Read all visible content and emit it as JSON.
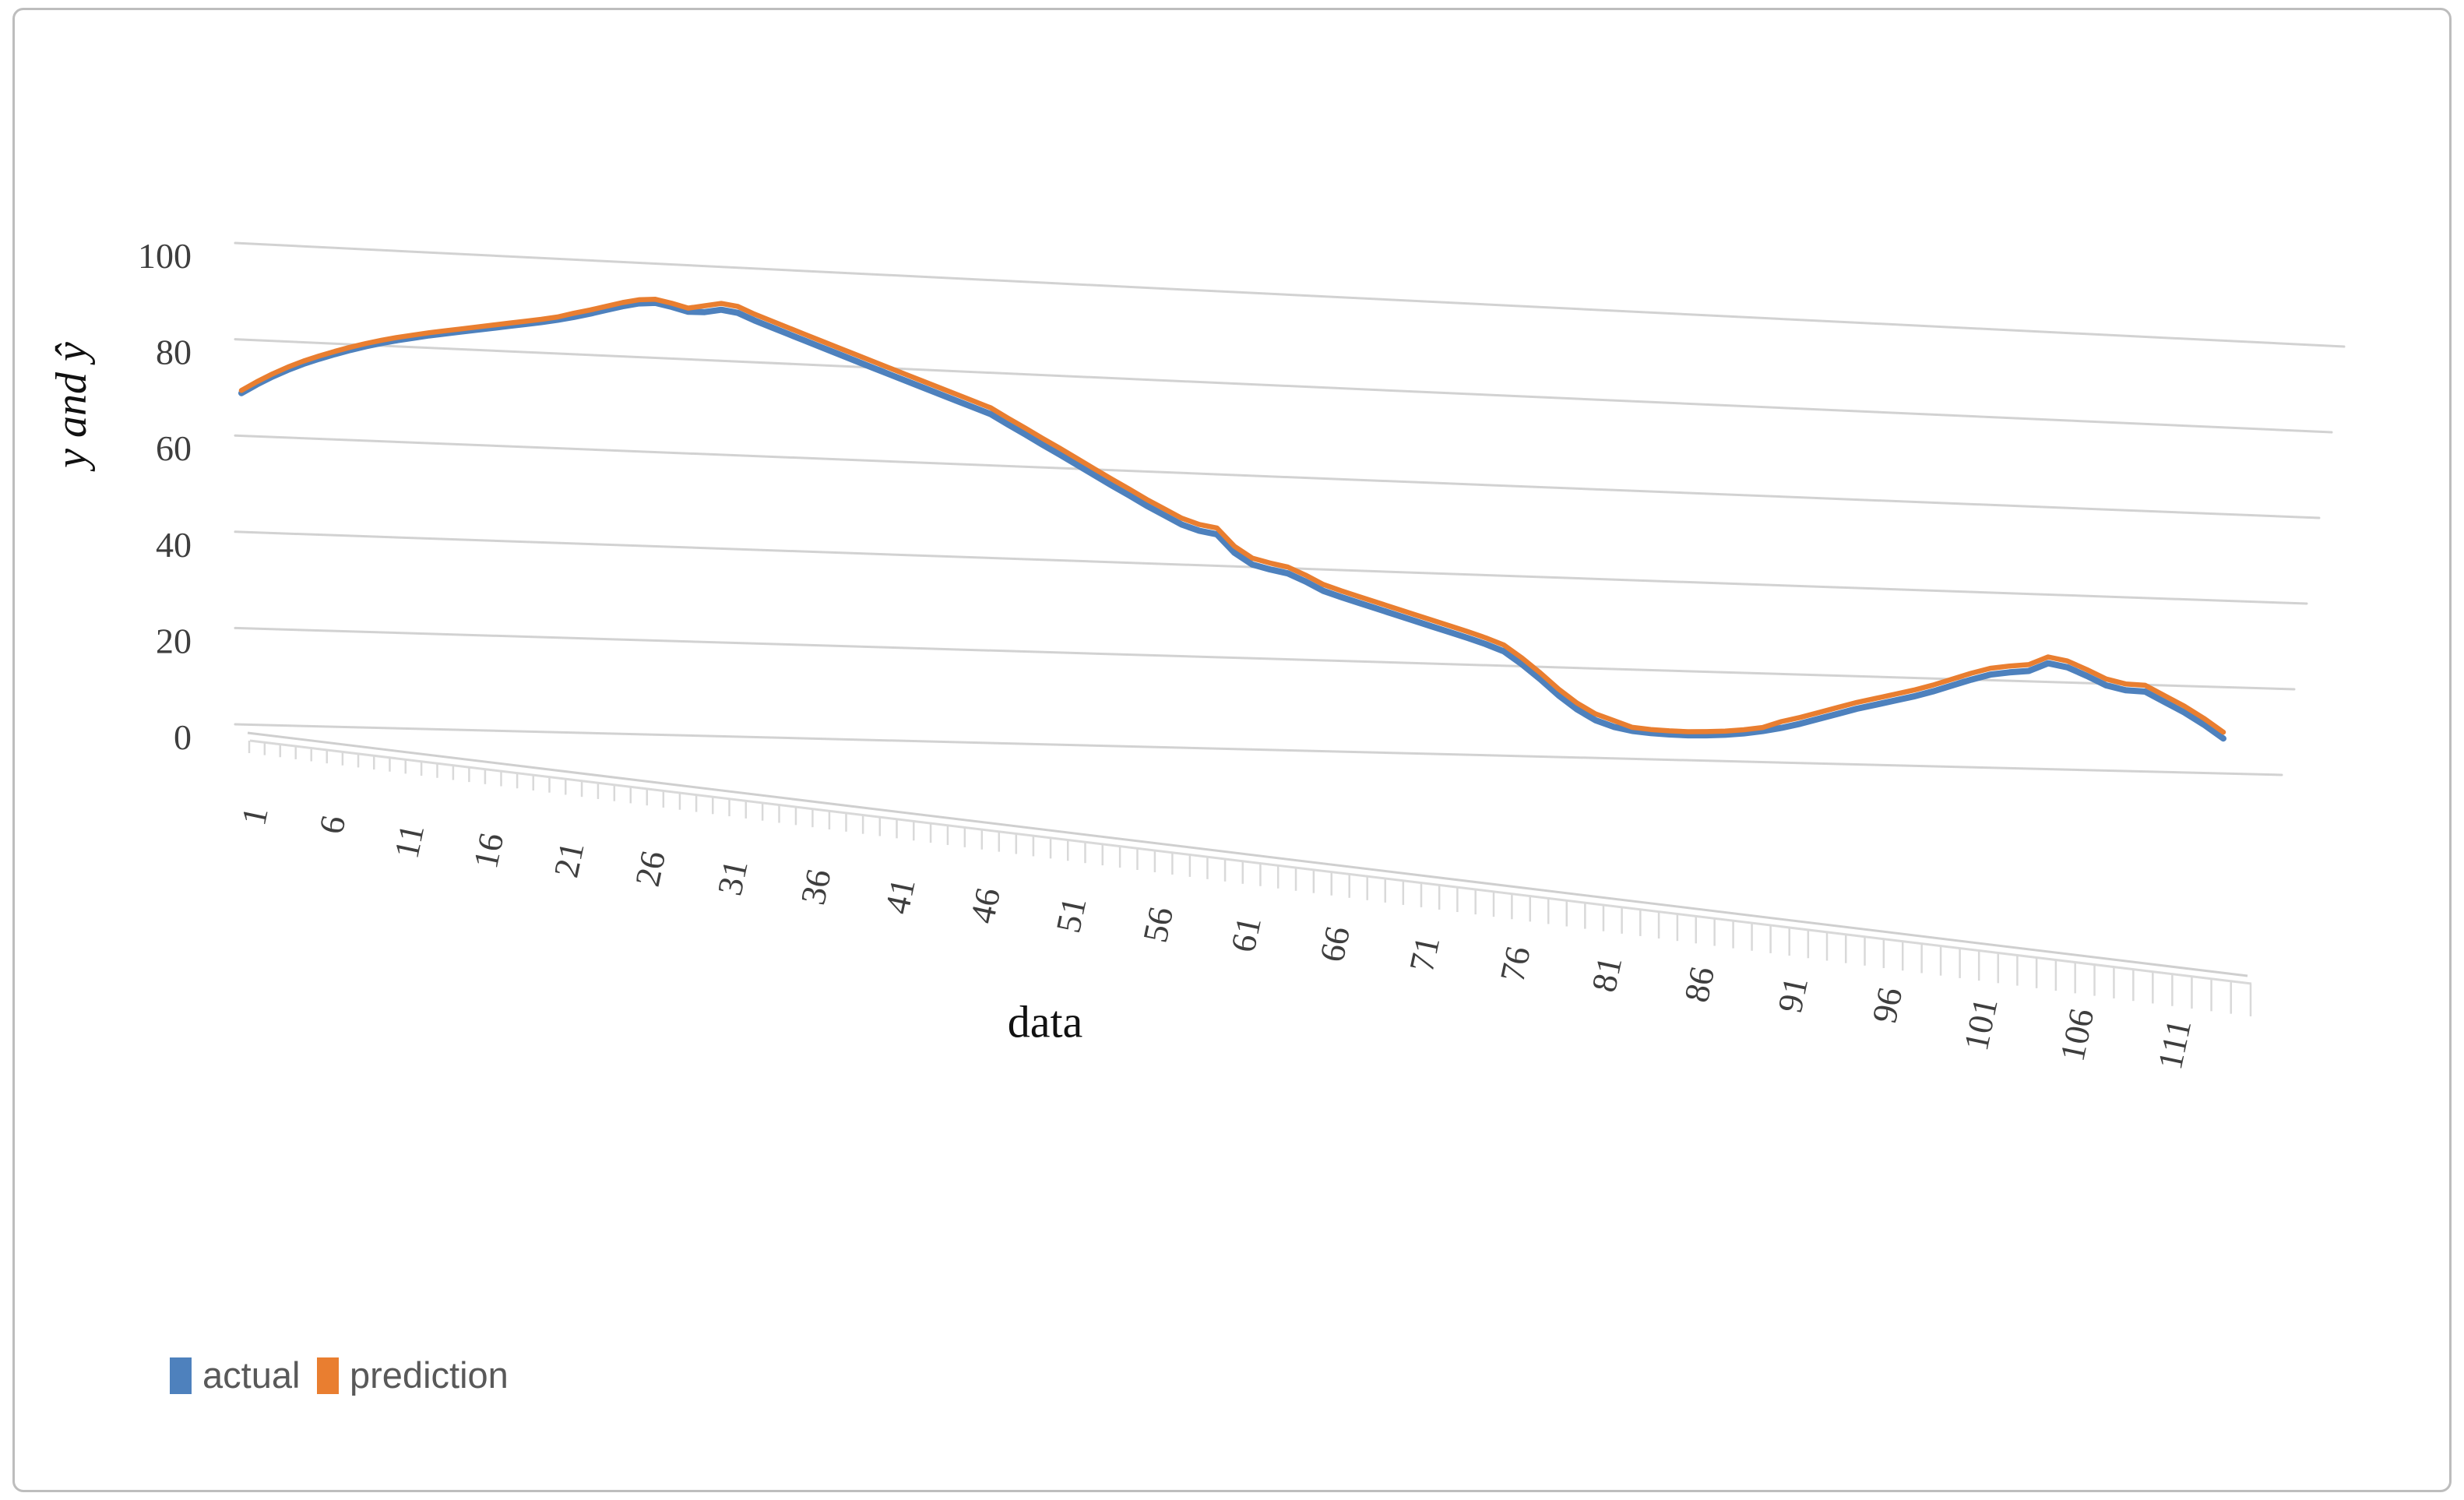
{
  "figure": {
    "background": "#ffffff",
    "border_color": "#bdbdbd"
  },
  "chart_data": {
    "type": "line",
    "title": "",
    "xlabel": "data",
    "ylabel": "y and ŷ",
    "x": {
      "from": 1,
      "to": 114,
      "step": 1
    },
    "xticks": [
      1,
      6,
      11,
      16,
      21,
      26,
      31,
      36,
      41,
      46,
      51,
      56,
      61,
      66,
      71,
      76,
      81,
      86,
      91,
      96,
      101,
      106,
      111
    ],
    "yticks": [
      0,
      20,
      40,
      60,
      80,
      100
    ],
    "ylim": [
      0,
      100
    ],
    "grid": "horizontal gridlines on slanted 3D back wall",
    "projection": "excel-3d-line-perspective",
    "legend_position": "bottom-left",
    "gridline_color": "#d2d2d2",
    "axis_ruler_color": "#d9d9d9",
    "tick_label_color": "#3e3e3e",
    "series": [
      {
        "name": "actual",
        "color": "#4E81BD",
        "values": [
          69,
          71,
          72.8,
          74.4,
          75.8,
          77,
          78.1,
          79.1,
          80,
          80.8,
          81.5,
          82.1,
          82.7,
          83.2,
          83.7,
          84.2,
          84.7,
          85.2,
          85.7,
          86.2,
          86.8,
          87.5,
          88.3,
          89.2,
          90.1,
          90.8,
          91,
          90.2,
          89.2,
          89.2,
          89.8,
          89.2,
          87.6,
          86.2,
          84.8,
          83.4,
          82,
          80.6,
          79.2,
          77.8,
          76.4,
          75,
          73.6,
          72.2,
          70.8,
          69.4,
          68,
          65.8,
          63.7,
          61.5,
          59.4,
          57.2,
          55,
          52.8,
          50.7,
          48.5,
          46.5,
          44.5,
          43.2,
          42.5,
          38.5,
          36,
          35,
          34.2,
          32.5,
          30.5,
          29.2,
          28,
          26.8,
          25.6,
          24.4,
          23.2,
          22,
          20.8,
          19.5,
          18,
          15.2,
          12,
          8.5,
          5.5,
          3.2,
          1.8,
          1,
          0.6,
          0.4,
          0.3,
          0.4,
          0.6,
          1,
          1.6,
          2.4,
          3.4,
          4.6,
          5.8,
          7,
          8,
          9,
          10,
          11.2,
          12.6,
          14,
          15.2,
          15.8,
          16.2,
          18,
          17.2,
          15.4,
          13.4,
          12.4,
          12.2,
          10,
          7.8,
          5.2,
          2.2
        ]
      },
      {
        "name": "prediction",
        "color": "#E97E30",
        "values": [
          69.6,
          71.6,
          73.4,
          75,
          76.4,
          77.6,
          78.7,
          79.7,
          80.6,
          81.4,
          82.1,
          82.7,
          83.3,
          83.8,
          84.3,
          84.8,
          85.3,
          85.8,
          86.3,
          86.8,
          87.4,
          88.3,
          89.1,
          90,
          90.9,
          91.6,
          91.8,
          91,
          90,
          90.6,
          91.2,
          90.6,
          89,
          87.6,
          86.2,
          84.8,
          83.4,
          82,
          80.6,
          79.2,
          77.8,
          76.4,
          75,
          73.6,
          72.2,
          70.8,
          69.4,
          67.2,
          65.1,
          62.9,
          60.8,
          58.6,
          56.4,
          54.2,
          52.1,
          49.9,
          47.9,
          45.9,
          44.6,
          43.9,
          39.9,
          37.4,
          36.4,
          35.6,
          33.9,
          31.9,
          30.6,
          29.4,
          28.2,
          27,
          25.8,
          24.6,
          23.4,
          22.2,
          20.9,
          19.4,
          16.6,
          13.4,
          9.9,
          6.9,
          4.6,
          3.2,
          1.8,
          1.4,
          1.2,
          1.1,
          1.2,
          1.4,
          1.8,
          2.4,
          3.8,
          4.8,
          6,
          7.2,
          8.4,
          9.4,
          10.4,
          11.4,
          12.6,
          14,
          15.4,
          16.6,
          17.2,
          17.6,
          19.4,
          18.6,
          16.8,
          14.8,
          13.8,
          13.6,
          11.4,
          9.2,
          6.6,
          3.6
        ]
      }
    ]
  }
}
